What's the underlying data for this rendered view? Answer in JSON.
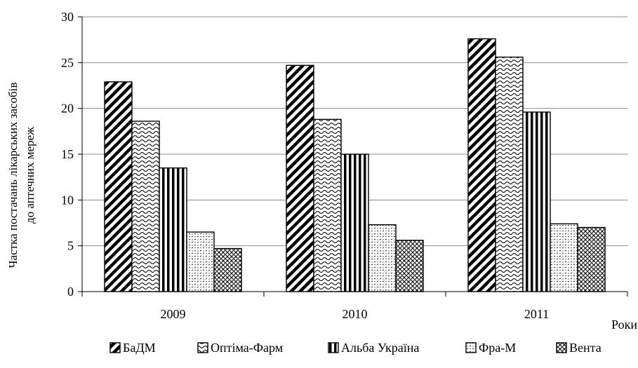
{
  "chart_data": {
    "type": "bar",
    "title": "",
    "xlabel": "Роки",
    "ylabel_lines": [
      "Частка постачань лікарських засобів",
      "до аптечних мереж"
    ],
    "categories": [
      "2009",
      "2010",
      "2011"
    ],
    "series": [
      {
        "name": "БаДМ",
        "values": [
          22.9,
          24.7,
          27.6
        ],
        "pattern": "diagonal"
      },
      {
        "name": "Оптіма-Фарм",
        "values": [
          18.6,
          18.8,
          25.6
        ],
        "pattern": "wave"
      },
      {
        "name": "Альба Україна",
        "values": [
          13.5,
          15.0,
          19.6
        ],
        "pattern": "vertical"
      },
      {
        "name": "Фра-М",
        "values": [
          6.5,
          7.3,
          7.4
        ],
        "pattern": "dots"
      },
      {
        "name": "Вента",
        "values": [
          4.7,
          5.6,
          7.0
        ],
        "pattern": "weave"
      }
    ],
    "ylim": [
      0,
      30
    ],
    "yticks": [
      0,
      5,
      10,
      15,
      20,
      25,
      30
    ],
    "grid": true,
    "legend_position": "bottom"
  }
}
